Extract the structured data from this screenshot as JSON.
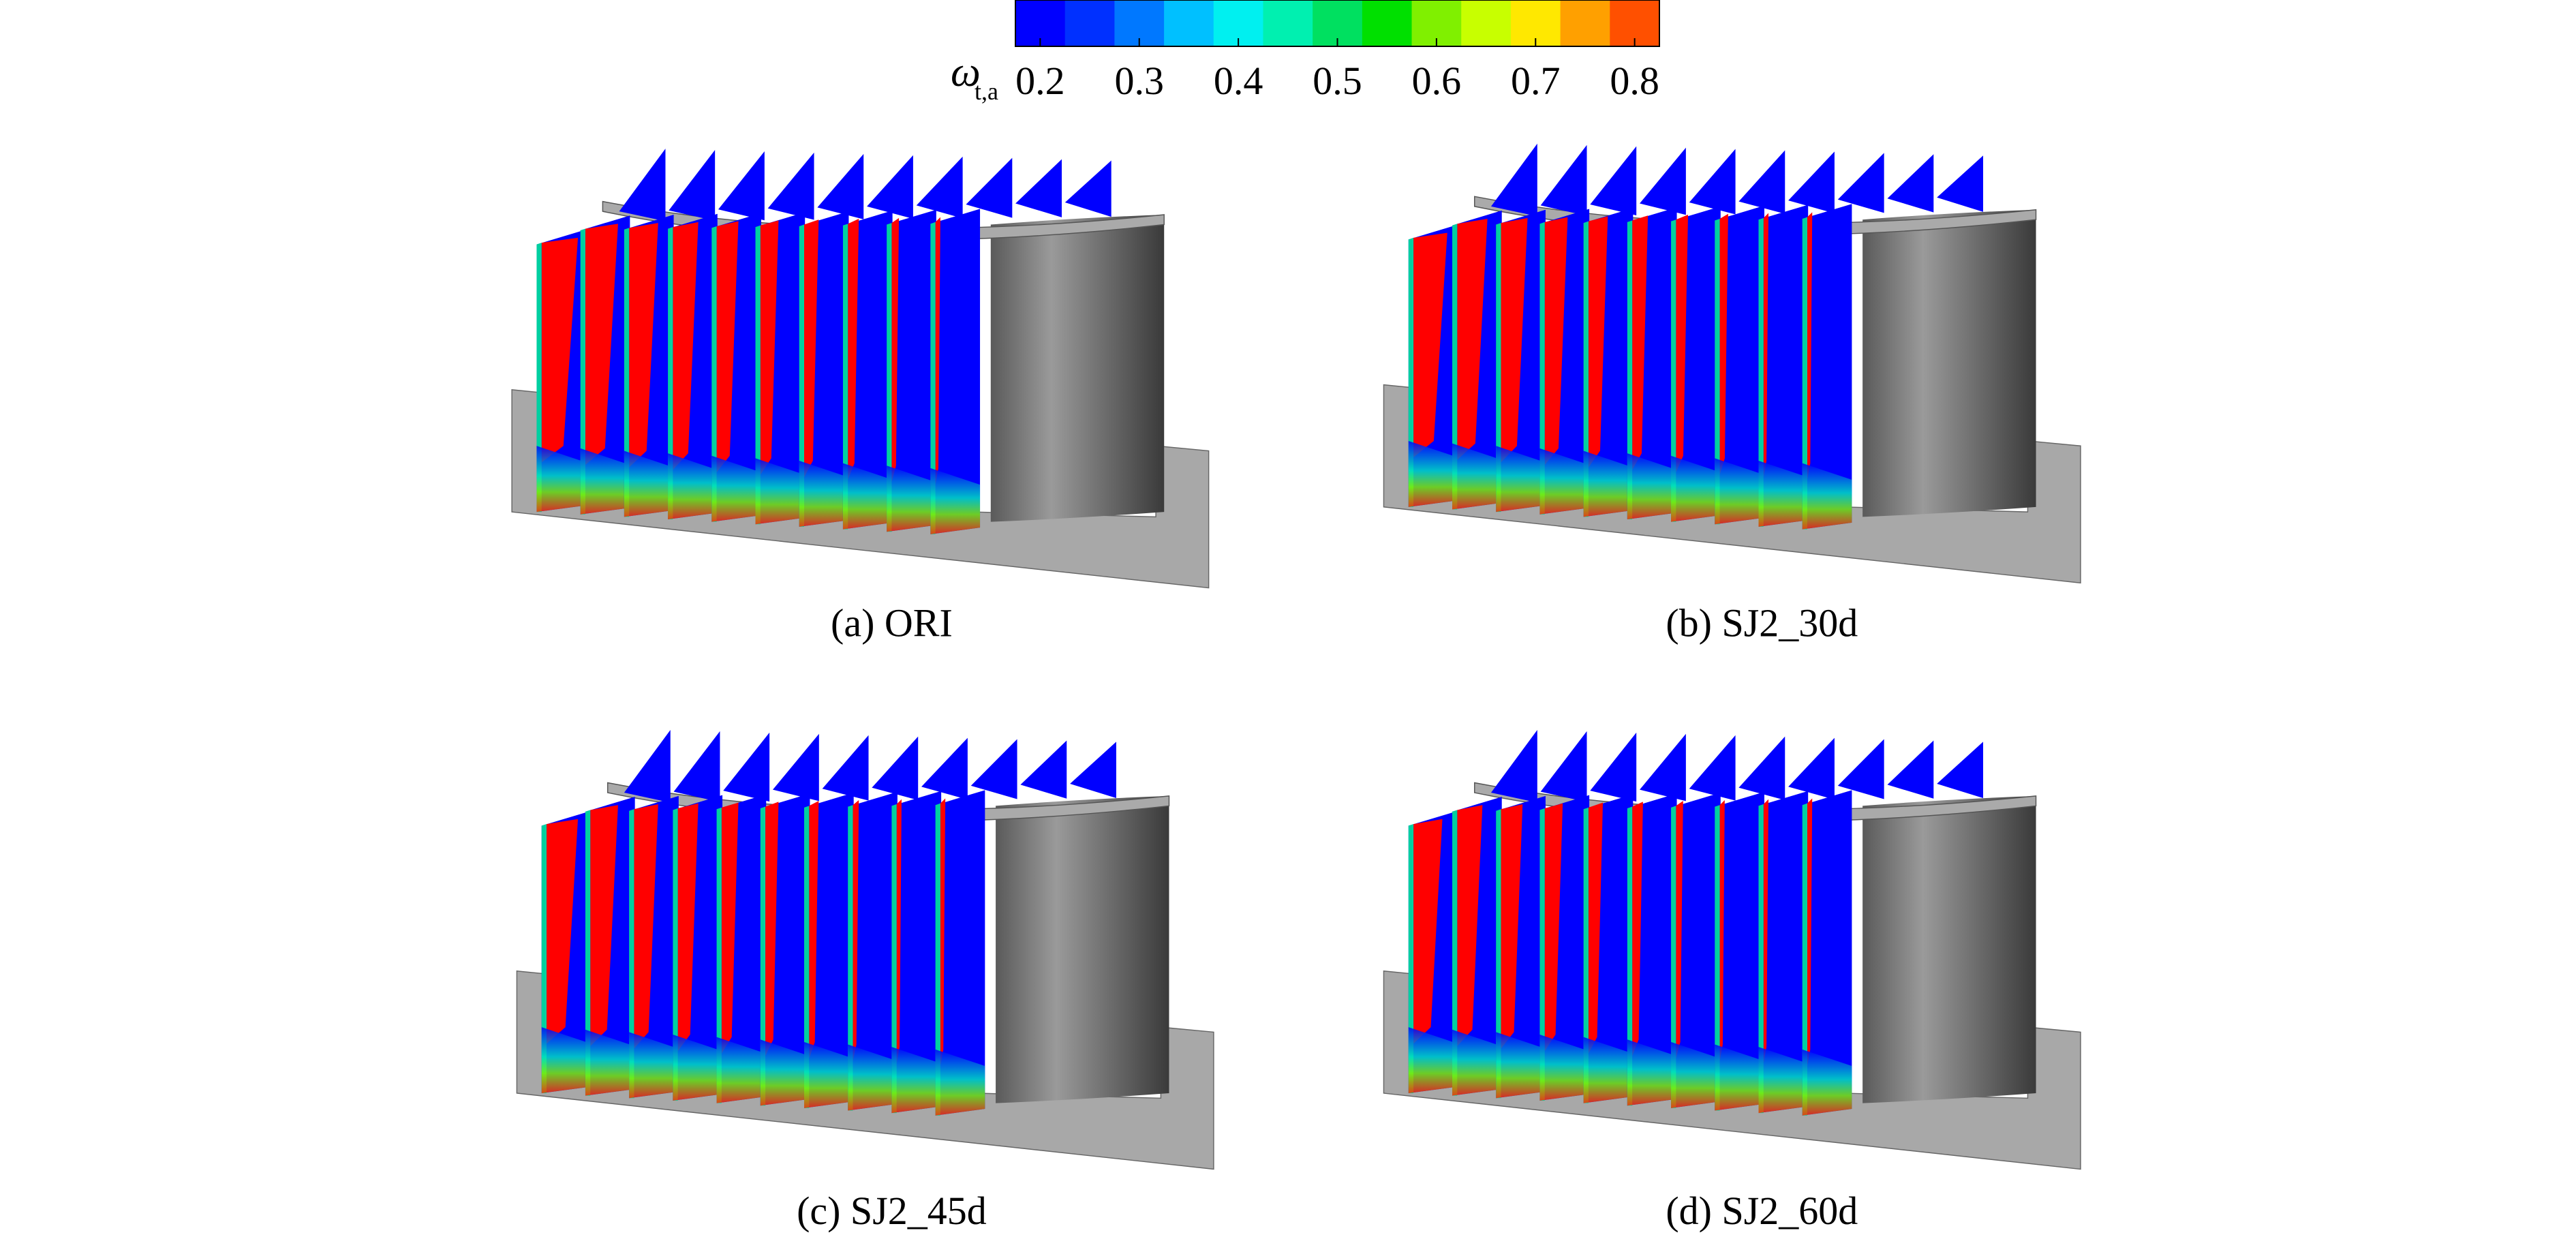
{
  "colorbar": {
    "label": "ω",
    "label_sub": "t,a",
    "lim": [
      0.175,
      0.825
    ],
    "ticks": [
      0.2,
      0.3,
      0.4,
      0.5,
      0.6,
      0.7,
      0.8
    ],
    "colors": [
      "#0000ff",
      "#0030ff",
      "#0078ff",
      "#00c0ff",
      "#00f0f0",
      "#00f0b0",
      "#00e060",
      "#00e000",
      "#80f000",
      "#c8ff00",
      "#ffe800",
      "#ffa000",
      "#ff5000",
      "#ff0000"
    ]
  },
  "panels": [
    {
      "caption": "(a) ORI"
    },
    {
      "caption": "(b) SJ2_30d"
    },
    {
      "caption": "(c) SJ2_45d"
    },
    {
      "caption": "(d) SJ2_60d"
    }
  ]
}
